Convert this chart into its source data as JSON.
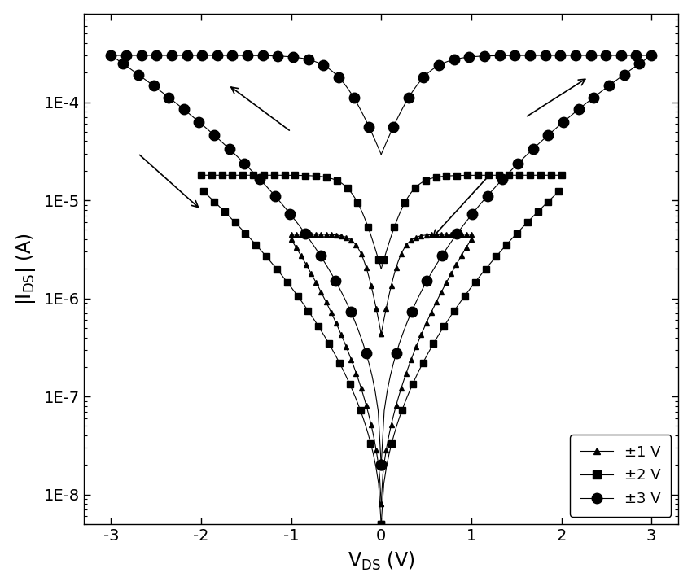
{
  "xlim": [
    -3.3,
    3.3
  ],
  "ylim_log": [
    5e-09,
    0.0008
  ],
  "xticks": [
    -3,
    -2,
    -1,
    0,
    1,
    2,
    3
  ],
  "yticks": [
    1e-08,
    1e-07,
    1e-06,
    1e-05,
    0.0001
  ],
  "ytick_labels": [
    "1E-8",
    "1E-7",
    "1E-6",
    "1E-5",
    "1E-4"
  ],
  "color": "black",
  "marker_triangle": "^",
  "marker_square": "s",
  "marker_circle": "o",
  "ms_tri": 5,
  "ms_sq": 6,
  "ms_circ": 9,
  "linewidth": 0.8,
  "legend_labels": [
    "±1 V",
    "±2 V",
    "±3 V"
  ],
  "legend_fontsize": 13,
  "axis_label_fontsize": 17,
  "tick_label_fontsize": 14,
  "figsize": [
    8.5,
    7.2
  ],
  "dpi": 100,
  "background_color": "#ffffff"
}
